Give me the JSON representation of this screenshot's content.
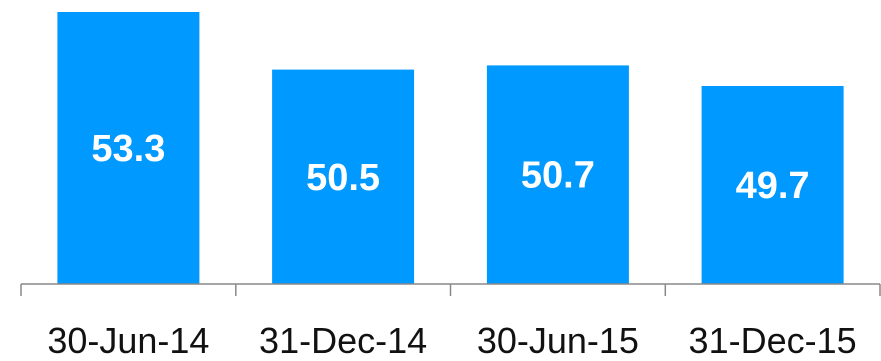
{
  "chart_data": {
    "type": "bar",
    "categories": [
      "30-Jun-14",
      "31-Dec-14",
      "30-Jun-15",
      "31-Dec-15"
    ],
    "values": [
      53.3,
      50.5,
      50.7,
      49.7
    ],
    "data_labels": [
      "53.3",
      "50.5",
      "50.7",
      "49.7"
    ],
    "title": "",
    "xlabel": "",
    "ylabel": "",
    "bar_color": "#0099ff",
    "grid": false,
    "legend": "none"
  }
}
